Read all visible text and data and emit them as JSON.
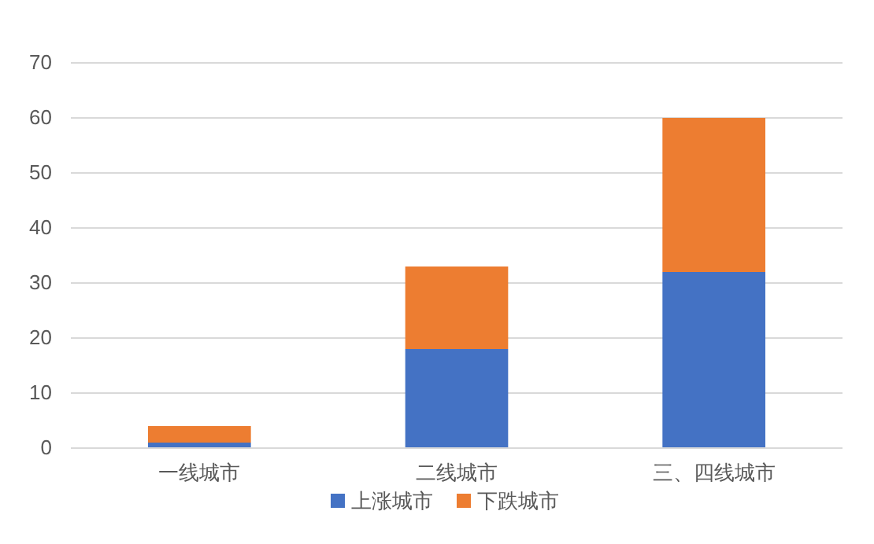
{
  "chart_data": {
    "type": "bar",
    "stacked": true,
    "categories": [
      "一线城市",
      "二线城市",
      "三、四线城市"
    ],
    "series": [
      {
        "name": "上涨城市",
        "color": "#4472c4",
        "values": [
          1,
          18,
          32
        ]
      },
      {
        "name": "下跌城市",
        "color": "#ed7d31",
        "values": [
          3,
          15,
          28
        ]
      }
    ],
    "ylim": [
      0,
      70
    ],
    "yticks": [
      0,
      10,
      20,
      30,
      40,
      50,
      60,
      70
    ],
    "grid": "y",
    "legend": "bottom"
  }
}
